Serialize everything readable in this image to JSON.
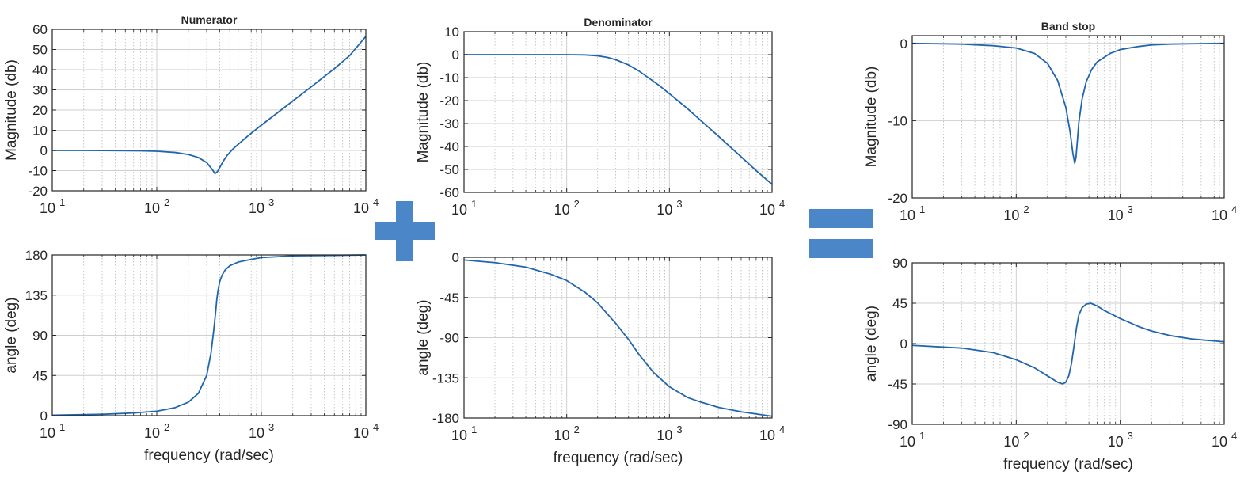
{
  "operators": {
    "plus": "+",
    "equals": "="
  },
  "colors": {
    "line": "#2166ac",
    "operator": "#4a86c8",
    "grid": "#cfcfcf",
    "axis": "#262626"
  },
  "chart_data": [
    {
      "id": "numerator-magnitude",
      "type": "line",
      "title": "Numerator",
      "xlabel": "",
      "ylabel": "Magnitude (db)",
      "xscale": "log",
      "xlim": [
        10,
        10000
      ],
      "ylim": [
        -20,
        60
      ],
      "yticks": [
        -20,
        -10,
        0,
        10,
        20,
        30,
        40,
        50,
        60
      ],
      "yticklabels": [
        "-20",
        "-10",
        "0",
        "10",
        "20",
        "30",
        "40",
        "50",
        "60"
      ],
      "xticks": [
        10,
        100,
        1000,
        10000
      ],
      "xticklabels": [
        "10",
        "10",
        "10",
        "10"
      ],
      "xtickexp": [
        "1",
        "2",
        "3",
        "4"
      ],
      "grid": true,
      "series": [
        {
          "x": [
            10,
            20,
            40,
            70,
            100,
            150,
            200,
            250,
            300,
            340,
            360,
            380,
            400,
            430,
            470,
            530,
            600,
            700,
            800,
            1000,
            1500,
            2000,
            3000,
            5000,
            7000,
            10000
          ],
          "y": [
            0,
            0,
            -0.1,
            -0.2,
            -0.4,
            -1,
            -2,
            -3.5,
            -6,
            -9.5,
            -11.5,
            -10.5,
            -8.5,
            -5.5,
            -2.5,
            0.5,
            3,
            6,
            8.5,
            12.5,
            19.5,
            24.5,
            31.5,
            40.5,
            47,
            56.5
          ]
        }
      ]
    },
    {
      "id": "numerator-phase",
      "type": "line",
      "title": "",
      "xlabel": "frequency (rad/sec)",
      "ylabel": "angle (deg)",
      "xscale": "log",
      "xlim": [
        10,
        10000
      ],
      "ylim": [
        0,
        180
      ],
      "yticks": [
        0,
        45,
        90,
        135,
        180
      ],
      "yticklabels": [
        "0",
        "45",
        "90",
        "135",
        "180"
      ],
      "xticks": [
        10,
        100,
        1000,
        10000
      ],
      "xticklabels": [
        "10",
        "10",
        "10",
        "10"
      ],
      "xtickexp": [
        "1",
        "2",
        "3",
        "4"
      ],
      "grid": true,
      "series": [
        {
          "x": [
            10,
            30,
            60,
            100,
            150,
            200,
            250,
            300,
            330,
            350,
            365,
            375,
            385,
            400,
            420,
            450,
            500,
            600,
            800,
            1000,
            2000,
            5000,
            10000
          ],
          "y": [
            0.5,
            1.5,
            3,
            5,
            9,
            15,
            25,
            45,
            70,
            95,
            115,
            130,
            140,
            150,
            157,
            163,
            168,
            172,
            175,
            177,
            179,
            179.5,
            180
          ]
        }
      ]
    },
    {
      "id": "denominator-magnitude",
      "type": "line",
      "title": "Denominator",
      "xlabel": "",
      "ylabel": "Magnitude (db)",
      "xscale": "log",
      "xlim": [
        10,
        10000
      ],
      "ylim": [
        -60,
        10
      ],
      "yticks": [
        -60,
        -50,
        -40,
        -30,
        -20,
        -10,
        0,
        10
      ],
      "yticklabels": [
        "-60",
        "-50",
        "-40",
        "-30",
        "-20",
        "-10",
        "0",
        "10"
      ],
      "xticks": [
        10,
        100,
        1000,
        10000
      ],
      "xticklabels": [
        "10",
        "10",
        "10",
        "10"
      ],
      "xtickexp": [
        "1",
        "2",
        "3",
        "4"
      ],
      "grid": true,
      "series": [
        {
          "x": [
            10,
            30,
            60,
            100,
            150,
            200,
            250,
            300,
            400,
            500,
            600,
            800,
            1000,
            1500,
            2000,
            3000,
            5000,
            7000,
            10000
          ],
          "y": [
            0,
            0,
            0,
            0,
            -0.1,
            -0.5,
            -1.2,
            -2.2,
            -4.5,
            -7,
            -9.5,
            -13.5,
            -17,
            -23.5,
            -28.5,
            -35.5,
            -44.5,
            -50.5,
            -56.5
          ]
        }
      ]
    },
    {
      "id": "denominator-phase",
      "type": "line",
      "title": "",
      "xlabel": "frequency (rad/sec)",
      "ylabel": "angle (deg)",
      "xscale": "log",
      "xlim": [
        10,
        10000
      ],
      "ylim": [
        -180,
        0
      ],
      "yticks": [
        -180,
        -135,
        -90,
        -45,
        0
      ],
      "yticklabels": [
        "-180",
        "-135",
        "-90",
        "-45",
        "0"
      ],
      "xticks": [
        10,
        100,
        1000,
        10000
      ],
      "xticklabels": [
        "10",
        "10",
        "10",
        "10"
      ],
      "xtickexp": [
        "1",
        "2",
        "3",
        "4"
      ],
      "grid": true,
      "series": [
        {
          "x": [
            10,
            20,
            40,
            70,
            100,
            150,
            200,
            300,
            400,
            500,
            700,
            1000,
            1500,
            2000,
            3000,
            5000,
            10000
          ],
          "y": [
            -3,
            -6,
            -11,
            -19,
            -26,
            -39,
            -51,
            -74,
            -92,
            -108,
            -129,
            -145,
            -157,
            -162,
            -168,
            -173,
            -178
          ]
        }
      ]
    },
    {
      "id": "band-stop-magnitude",
      "type": "line",
      "title": "Band stop",
      "xlabel": "",
      "ylabel": "Magnitude (db)",
      "xscale": "log",
      "xlim": [
        10,
        10000
      ],
      "ylim": [
        -20,
        1
      ],
      "yticks": [
        -20,
        -10,
        0
      ],
      "yticklabels": [
        "-20",
        "-10",
        "0"
      ],
      "xticks": [
        10,
        100,
        1000,
        10000
      ],
      "xticklabels": [
        "10",
        "10",
        "10",
        "10"
      ],
      "xtickexp": [
        "1",
        "2",
        "3",
        "4"
      ],
      "grid": true,
      "series": [
        {
          "x": [
            10,
            30,
            60,
            100,
            150,
            200,
            250,
            300,
            330,
            350,
            365,
            375,
            385,
            400,
            430,
            470,
            530,
            600,
            800,
            1000,
            1500,
            2000,
            3000,
            5000,
            10000
          ],
          "y": [
            0,
            -0.1,
            -0.3,
            -0.6,
            -1.3,
            -2.6,
            -4.8,
            -8.3,
            -11.5,
            -14.2,
            -15.5,
            -14.8,
            -13,
            -10.2,
            -7.2,
            -5,
            -3.4,
            -2.4,
            -1.3,
            -0.8,
            -0.4,
            -0.2,
            -0.1,
            -0.05,
            0
          ]
        }
      ]
    },
    {
      "id": "band-stop-phase",
      "type": "line",
      "title": "",
      "xlabel": "frequency (rad/sec)",
      "ylabel": "angle (deg)",
      "xscale": "log",
      "xlim": [
        10,
        10000
      ],
      "ylim": [
        -90,
        90
      ],
      "yticks": [
        -90,
        -45,
        0,
        45,
        90
      ],
      "yticklabels": [
        "-90",
        "-45",
        "0",
        "45",
        "90"
      ],
      "xticks": [
        10,
        100,
        1000,
        10000
      ],
      "xticklabels": [
        "10",
        "10",
        "10",
        "10"
      ],
      "xtickexp": [
        "1",
        "2",
        "3",
        "4"
      ],
      "grid": true,
      "series": [
        {
          "x": [
            10,
            30,
            60,
            100,
            150,
            200,
            250,
            280,
            300,
            320,
            340,
            360,
            380,
            400,
            430,
            470,
            520,
            600,
            700,
            1000,
            1500,
            2000,
            3000,
            5000,
            10000
          ],
          "y": [
            -2,
            -5,
            -10,
            -18,
            -27,
            -36,
            -43,
            -45,
            -43,
            -36,
            -22,
            -2,
            18,
            32,
            40,
            44,
            45,
            42,
            37,
            28,
            19,
            14,
            9,
            5,
            2
          ]
        }
      ]
    }
  ]
}
